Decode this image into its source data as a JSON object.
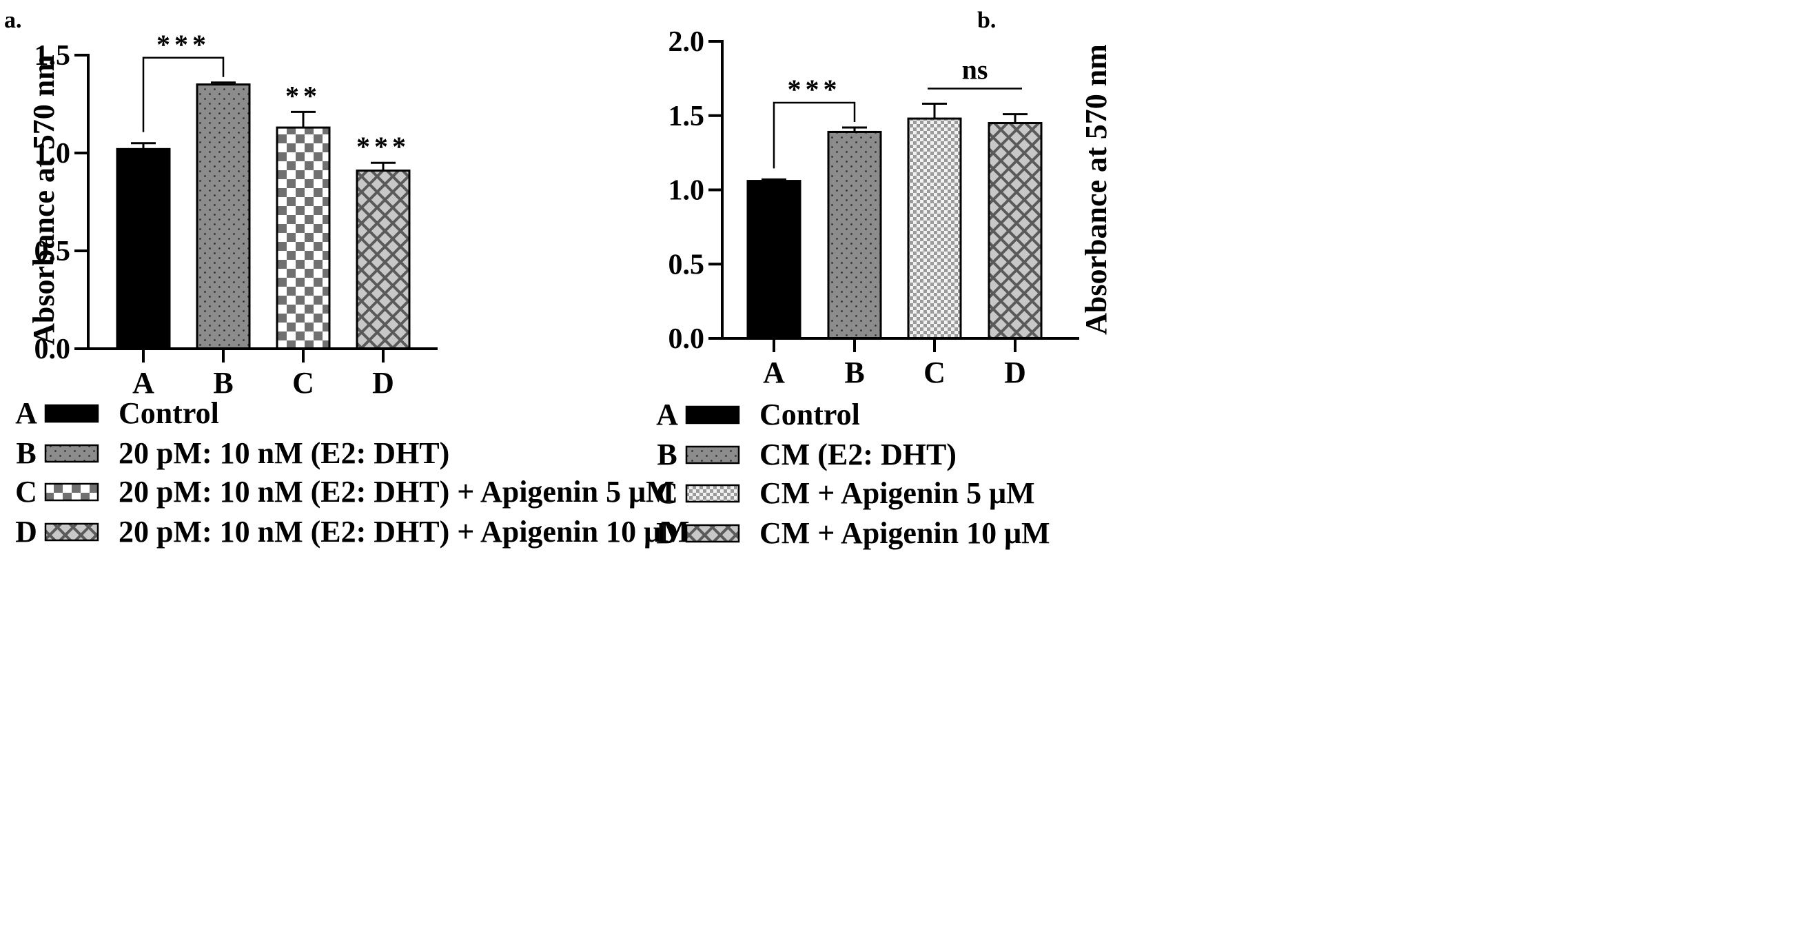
{
  "chart_data": [
    {
      "panel_label": "a.",
      "type": "bar",
      "categories": [
        "A",
        "B",
        "C",
        "D"
      ],
      "values": [
        1.02,
        1.35,
        1.13,
        0.91
      ],
      "errors": [
        0.03,
        0.01,
        0.08,
        0.04
      ],
      "ylabel": "Absorbance at 570 nm",
      "xlabel": "",
      "ylim": [
        0,
        1.5
      ],
      "yticks": [
        "0.0",
        "0.5",
        "1.0",
        "1.5"
      ],
      "fills": [
        "solid",
        "dots",
        "checker",
        "diagonal"
      ],
      "significance": [
        {
          "type": "bracket",
          "from": "A",
          "to": "B",
          "text": "***"
        },
        {
          "type": "label",
          "bar": "C",
          "text": "**"
        },
        {
          "type": "label",
          "bar": "D",
          "text": "***"
        }
      ],
      "legend": [
        {
          "letter": "A",
          "text": "Control"
        },
        {
          "letter": "B",
          "text": "20 pM: 10 nM (E2: DHT)"
        },
        {
          "letter": "C",
          "text": "20 pM: 10 nM (E2: DHT) + Apigenin 5 μM"
        },
        {
          "letter": "D",
          "text": "20 pM: 10 nM (E2: DHT) + Apigenin 10 μM"
        }
      ],
      "grid": false,
      "legend_placement": "bottom"
    },
    {
      "panel_label": "b.",
      "type": "bar",
      "categories": [
        "A",
        "B",
        "C",
        "D"
      ],
      "values": [
        1.06,
        1.39,
        1.48,
        1.45
      ],
      "errors": [
        0.01,
        0.03,
        0.1,
        0.06
      ],
      "ylabel": "Absorbance at 570 nm",
      "xlabel": "",
      "ylim": [
        0,
        2.0
      ],
      "yticks": [
        "0.0",
        "0.5",
        "1.0",
        "1.5",
        "2.0"
      ],
      "fills": [
        "solid",
        "dots",
        "fine-checker",
        "diagonal"
      ],
      "significance": [
        {
          "type": "bracket",
          "from": "A",
          "to": "B",
          "text": "***"
        },
        {
          "type": "line",
          "from": "C",
          "to": "D",
          "text": "ns"
        }
      ],
      "legend": [
        {
          "letter": "A",
          "text": "Control"
        },
        {
          "letter": "B",
          "text": "CM (E2: DHT)"
        },
        {
          "letter": "C",
          "text": "CM + Apigenin 5 μM"
        },
        {
          "letter": "D",
          "text": "CM + Apigenin 10 μM"
        }
      ],
      "grid": false,
      "legend_placement": "bottom"
    }
  ]
}
